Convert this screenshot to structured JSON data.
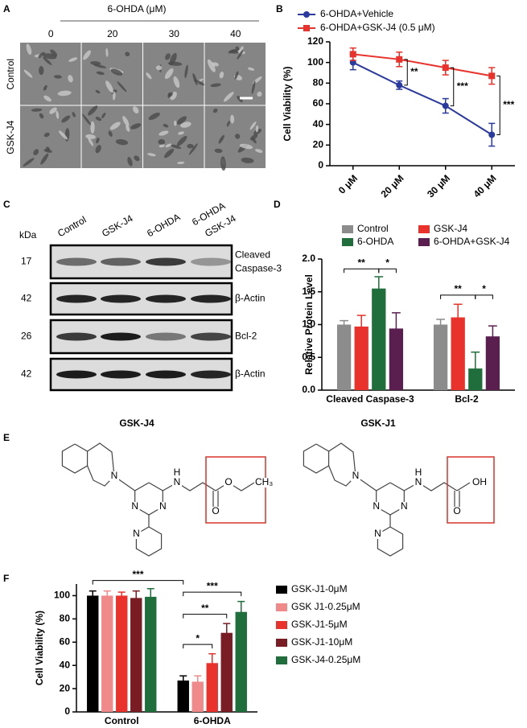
{
  "panel_labels": [
    "A",
    "B",
    "C",
    "D",
    "E",
    "F"
  ],
  "micrograph": {
    "title": "6-OHDA (μM)",
    "columns": [
      "0",
      "20",
      "30",
      "40"
    ],
    "rows": [
      "Control",
      "GSK-J4"
    ]
  },
  "western_blot": {
    "unit": "kDa",
    "lanes": [
      [
        "Control"
      ],
      [
        "GSK-J4"
      ],
      [
        "6-OHDA"
      ],
      [
        "6-OHDA",
        "GSK-J4"
      ]
    ],
    "blots": [
      {
        "kda": 17,
        "label": [
          "Cleaved",
          "Caspase-3"
        ]
      },
      {
        "kda": 42,
        "label": [
          "β-Actin"
        ]
      },
      {
        "kda": 26,
        "label": [
          "Bcl-2"
        ]
      },
      {
        "kda": 42,
        "label": [
          "β-Actin"
        ]
      }
    ]
  },
  "structures": [
    {
      "name": "GSK-J4",
      "atoms": [
        "N",
        "N",
        "N",
        "N",
        "N",
        "H",
        "O",
        "O",
        "CH₃"
      ]
    },
    {
      "name": "GSK-J1",
      "atoms": [
        "N",
        "N",
        "N",
        "N",
        "N",
        "H",
        "O",
        "OH"
      ]
    }
  ],
  "chart_data": [
    {
      "type": "line",
      "ylabel": "Cell Viability (%)",
      "categories": [
        "0 μM",
        "20 μM",
        "30 μM",
        "40 μM"
      ],
      "series": [
        {
          "name": "6-OHDA+Vehicle",
          "color": "#2b3a9e",
          "values": [
            100,
            78,
            58,
            30
          ],
          "errors": [
            7,
            4,
            7,
            11
          ]
        },
        {
          "name": "6-OHDA+GSK-J4 (0.5 μM)",
          "color": "#e8322b",
          "values": [
            108,
            103,
            95,
            87
          ],
          "errors": [
            6,
            7,
            7,
            8
          ]
        }
      ],
      "ylim": [
        0,
        120
      ],
      "yticks": [
        0,
        20,
        40,
        60,
        80,
        100,
        120
      ],
      "annotations": [
        "**",
        "***",
        "***"
      ]
    },
    {
      "type": "bar",
      "ylabel": "Relative Protein Level",
      "categories": [
        "Cleaved Caspase-3",
        "Bcl-2"
      ],
      "series": [
        {
          "name": "Control",
          "color": "#8c8c8c",
          "values": [
            1.0,
            1.0
          ],
          "errors": [
            0.06,
            0.08
          ]
        },
        {
          "name": "GSK-J4",
          "color": "#e8322b",
          "values": [
            0.97,
            1.11
          ],
          "errors": [
            0.17,
            0.2
          ]
        },
        {
          "name": "6-OHDA",
          "color": "#1f6e3c",
          "values": [
            1.55,
            0.33
          ],
          "errors": [
            0.18,
            0.25
          ]
        },
        {
          "name": "6-OHDA+GSK-J4",
          "color": "#5b1f4f",
          "values": [
            0.94,
            0.82
          ],
          "errors": [
            0.24,
            0.16
          ]
        }
      ],
      "ylim": [
        0,
        2
      ],
      "yticks": [
        {
          "value": 0,
          "label": "0.0"
        },
        0.5,
        {
          "value": 1,
          "label": "1.0"
        },
        1.5,
        {
          "value": 2,
          "label": "2.0"
        }
      ],
      "annotations": [
        "**",
        "*",
        "**",
        "*"
      ]
    },
    {
      "type": "bar",
      "ylabel": "Cell Viability (%)",
      "categories": [
        "Control",
        "6-OHDA"
      ],
      "series": [
        {
          "name": "GSK-J1-0μM",
          "color": "#000000",
          "values": [
            100,
            27
          ],
          "errors": [
            4,
            4
          ]
        },
        {
          "name": "GSK J1-0.25μM",
          "color": "#f08a8a",
          "values": [
            100,
            26
          ],
          "errors": [
            4,
            5
          ]
        },
        {
          "name": "GSK-J1-5μM",
          "color": "#e8322b",
          "values": [
            100,
            42
          ],
          "errors": [
            3,
            8
          ]
        },
        {
          "name": "GSK-J1-10μM",
          "color": "#7a1c24",
          "values": [
            98,
            68
          ],
          "errors": [
            6,
            8
          ]
        },
        {
          "name": "GSK-J4-0.25μM",
          "color": "#1f6e3c",
          "values": [
            99,
            86
          ],
          "errors": [
            7,
            9
          ]
        }
      ],
      "ylim": [
        0,
        110
      ],
      "yticks": [
        0,
        20,
        40,
        60,
        80,
        100
      ],
      "annotations": [
        "***",
        "***",
        "**",
        "*"
      ]
    }
  ]
}
